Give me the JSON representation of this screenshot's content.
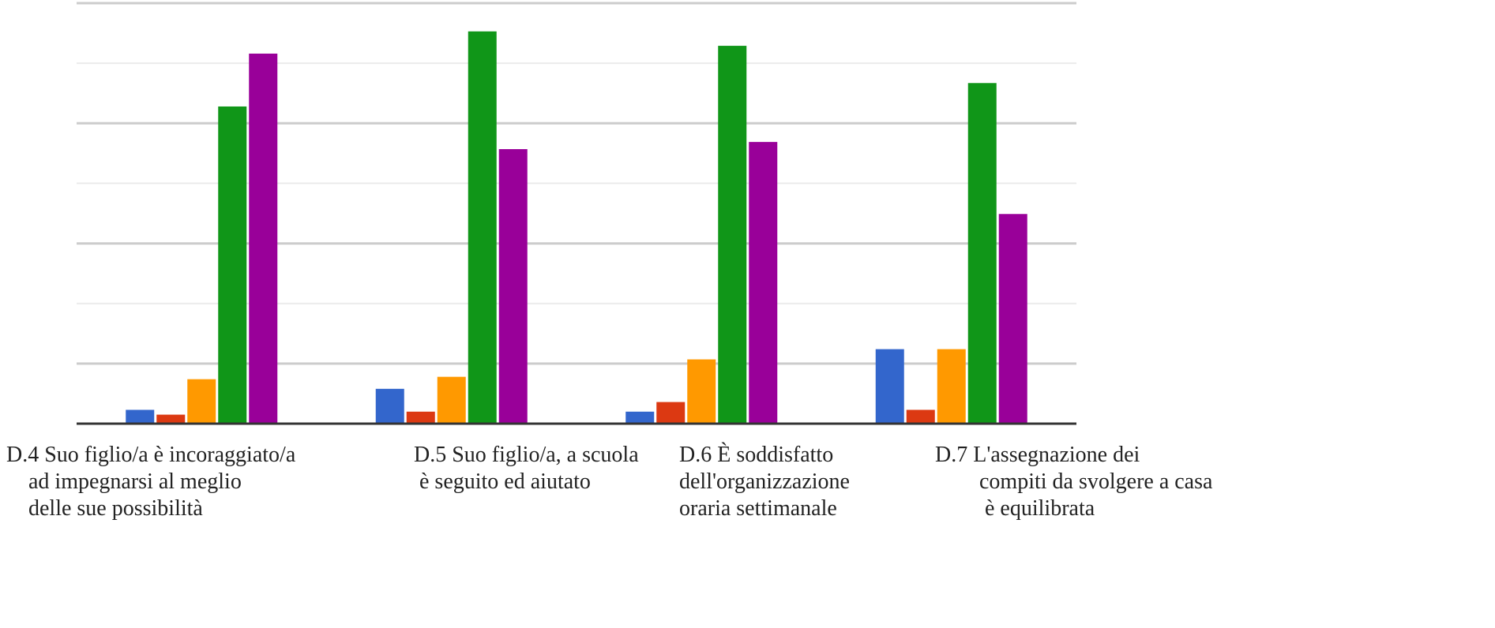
{
  "chart_data": {
    "type": "bar",
    "title": "",
    "xlabel": "",
    "ylabel": "",
    "ylim": [
      0,
      70
    ],
    "gridlines": [
      0,
      10,
      20,
      30,
      40,
      50,
      60,
      70
    ],
    "grid": true,
    "legend": "none",
    "categories": [
      "D.4 Suo figlio/a è incoraggiato/a\n    ad impegnarsi al meglio\n    delle sue possibilità",
      "D.5 Suo figlio/a, a scuola\n è seguito ed aiutato",
      "D.6 È soddisfatto\ndell'organizzazione\noraria settimanale",
      "D.7 L'assegnazione dei\n        compiti da svolgere a casa\n         è equilibrata"
    ],
    "series": [
      {
        "color": "#3366cc",
        "values": [
          2.3,
          5.8,
          2.0,
          12.4
        ]
      },
      {
        "color": "#dc3912",
        "values": [
          1.5,
          2.0,
          3.6,
          2.3
        ]
      },
      {
        "color": "#ff9900",
        "values": [
          7.4,
          7.8,
          10.7,
          12.4
        ]
      },
      {
        "color": "#109618",
        "values": [
          52.8,
          65.3,
          62.9,
          56.7
        ]
      },
      {
        "color": "#990099",
        "values": [
          61.6,
          45.7,
          46.9,
          34.9
        ]
      }
    ]
  }
}
